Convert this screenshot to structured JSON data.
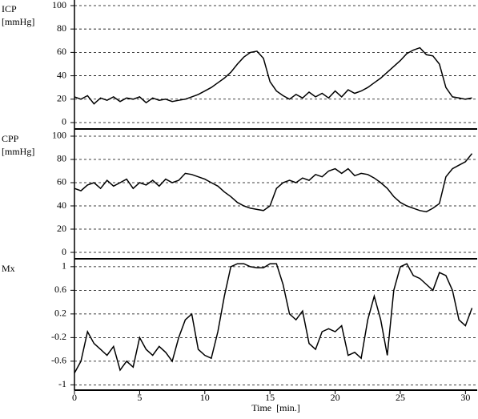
{
  "chart_data": [
    {
      "type": "line",
      "ylabel_lines": [
        "ICP",
        "[mmHg]"
      ],
      "x": [
        0,
        0.5,
        1,
        1.5,
        2,
        2.5,
        3,
        3.5,
        4,
        4.5,
        5,
        5.5,
        6,
        6.5,
        7,
        7.5,
        8,
        8.5,
        9,
        9.5,
        10,
        10.5,
        11,
        11.5,
        12,
        12.5,
        13,
        13.5,
        14,
        14.5,
        15,
        15.5,
        16,
        16.5,
        17,
        17.5,
        18,
        18.5,
        19,
        19.5,
        20,
        20.5,
        21,
        21.5,
        22,
        22.5,
        23,
        23.5,
        24,
        24.5,
        25,
        25.5,
        26,
        26.5,
        27,
        27.5,
        28,
        28.5,
        29,
        29.5,
        30,
        30.5
      ],
      "series": [
        {
          "color": "#000000",
          "values": [
            22,
            20,
            23,
            16,
            21,
            19,
            22,
            18,
            21,
            20,
            22,
            17,
            21,
            19,
            20,
            18,
            19,
            20,
            22,
            24,
            27,
            30,
            34,
            38,
            43,
            50,
            56,
            60,
            61,
            55,
            35,
            27,
            23,
            20,
            24,
            21,
            26,
            22,
            25,
            21,
            27,
            22,
            28,
            25,
            27,
            30,
            34,
            38,
            43,
            48,
            53,
            59,
            62,
            64,
            58,
            57,
            50,
            30,
            22,
            21,
            20,
            21
          ]
        }
      ],
      "xlim": [
        0,
        30.9
      ],
      "ylim": [
        -5.5,
        104.8
      ],
      "yticks": [
        0,
        20,
        40,
        60,
        80,
        100
      ],
      "grid": true
    },
    {
      "type": "line",
      "ylabel_lines": [
        "CPP",
        "[mmHg]"
      ],
      "x": [
        0,
        0.5,
        1,
        1.5,
        2,
        2.5,
        3,
        3.5,
        4,
        4.5,
        5,
        5.5,
        6,
        6.5,
        7,
        7.5,
        8,
        8.5,
        9,
        9.5,
        10,
        10.5,
        11,
        11.5,
        12,
        12.5,
        13,
        13.5,
        14,
        14.5,
        15,
        15.5,
        16,
        16.5,
        17,
        17.5,
        18,
        18.5,
        19,
        19.5,
        20,
        20.5,
        21,
        21.5,
        22,
        22.5,
        23,
        23.5,
        24,
        24.5,
        25,
        25.5,
        26,
        26.5,
        27,
        27.5,
        28,
        28.5,
        29,
        29.5,
        30,
        30.5
      ],
      "series": [
        {
          "color": "#000000",
          "values": [
            55,
            53,
            58,
            60,
            55,
            62,
            57,
            60,
            63,
            55,
            60,
            58,
            62,
            57,
            63,
            60,
            62,
            68,
            67,
            65,
            63,
            60,
            57,
            52,
            48,
            43,
            40,
            38,
            37,
            36,
            40,
            55,
            60,
            62,
            60,
            64,
            62,
            67,
            65,
            70,
            72,
            68,
            72,
            66,
            68,
            67,
            64,
            60,
            55,
            48,
            43,
            40,
            38,
            36,
            35,
            38,
            42,
            65,
            72,
            75,
            78,
            85
          ]
        }
      ],
      "xlim": [
        0,
        30.9
      ],
      "ylim": [
        -5.5,
        105.5
      ],
      "yticks": [
        0,
        20,
        40,
        60,
        80,
        100
      ],
      "grid": true
    },
    {
      "type": "line",
      "ylabel_lines": [
        "Mx"
      ],
      "x": [
        0,
        0.5,
        1,
        1.5,
        2,
        2.5,
        3,
        3.5,
        4,
        4.5,
        5,
        5.5,
        6,
        6.5,
        7,
        7.5,
        8,
        8.5,
        9,
        9.5,
        10,
        10.5,
        11,
        11.5,
        12,
        12.5,
        13,
        13.5,
        14,
        14.5,
        15,
        15.5,
        16,
        16.5,
        17,
        17.5,
        18,
        18.5,
        19,
        19.5,
        20,
        20.5,
        21,
        21.5,
        22,
        22.5,
        23,
        23.5,
        24,
        24.5,
        25,
        25.5,
        26,
        26.5,
        27,
        27.5,
        28,
        28.5,
        29,
        29.5,
        30,
        30.5
      ],
      "series": [
        {
          "color": "#000000",
          "values": [
            -0.8,
            -0.6,
            -0.1,
            -0.3,
            -0.4,
            -0.5,
            -0.35,
            -0.75,
            -0.6,
            -0.7,
            -0.2,
            -0.4,
            -0.5,
            -0.35,
            -0.45,
            -0.6,
            -0.2,
            0.1,
            0.2,
            -0.4,
            -0.5,
            -0.55,
            -0.1,
            0.5,
            1.0,
            1.05,
            1.05,
            1.0,
            0.98,
            0.98,
            1.05,
            1.05,
            0.7,
            0.2,
            0.1,
            0.25,
            -0.3,
            -0.4,
            -0.1,
            -0.05,
            -0.1,
            0.0,
            -0.5,
            -0.45,
            -0.55,
            0.1,
            0.5,
            0.1,
            -0.5,
            0.6,
            1.0,
            1.05,
            0.85,
            0.8,
            0.7,
            0.6,
            0.9,
            0.85,
            0.6,
            0.1,
            0.0,
            0.3
          ]
        }
      ],
      "xlim": [
        0,
        30.9
      ],
      "ylim": [
        -1.09,
        1.12
      ],
      "yticks": [
        -1,
        -0.6,
        -0.2,
        0.2,
        0.6,
        1
      ],
      "grid": true,
      "xticks": [
        0,
        5,
        10,
        15,
        20,
        25,
        30
      ],
      "xlabel": "Time  [min.]"
    }
  ]
}
